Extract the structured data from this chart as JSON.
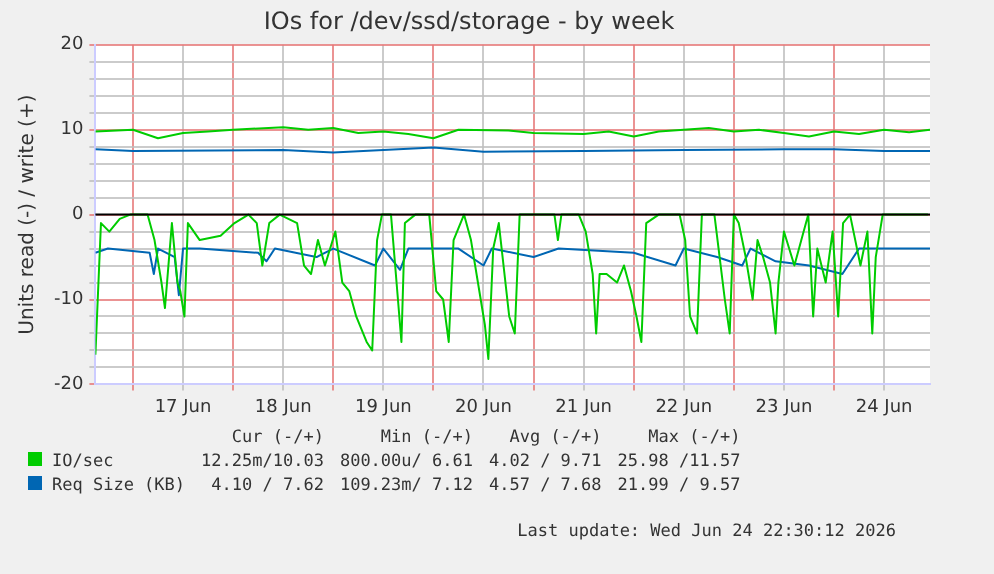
{
  "chart_data": {
    "type": "line",
    "title": "IOs for /dev/ssd/storage - by week",
    "ylabel": "Units read (-) / write (+)",
    "xlim": [
      "2026-06-16T15:00",
      "2026-06-24T23:00"
    ],
    "xticks": [
      {
        "value": "2026-06-17T00:00",
        "label": null
      },
      {
        "value": "2026-06-17T12:00",
        "label": "17 Jun"
      },
      {
        "value": "2026-06-18T00:00",
        "label": null
      },
      {
        "value": "2026-06-18T12:00",
        "label": "18 Jun"
      },
      {
        "value": "2026-06-19T00:00",
        "label": null
      },
      {
        "value": "2026-06-19T12:00",
        "label": "19 Jun"
      },
      {
        "value": "2026-06-20T00:00",
        "label": null
      },
      {
        "value": "2026-06-20T12:00",
        "label": "20 Jun"
      },
      {
        "value": "2026-06-21T00:00",
        "label": null
      },
      {
        "value": "2026-06-21T12:00",
        "label": "21 Jun"
      },
      {
        "value": "2026-06-22T00:00",
        "label": null
      },
      {
        "value": "2026-06-22T12:00",
        "label": "22 Jun"
      },
      {
        "value": "2026-06-23T00:00",
        "label": null
      },
      {
        "value": "2026-06-23T12:00",
        "label": "23 Jun"
      },
      {
        "value": "2026-06-24T00:00",
        "label": null
      },
      {
        "value": "2026-06-24T12:00",
        "label": "24 Jun"
      }
    ],
    "ylim": [
      -20,
      20
    ],
    "yticks": [
      -20,
      {
        "value": -18,
        "label": null
      },
      {
        "value": -16,
        "label": null
      },
      {
        "value": -14,
        "label": null
      },
      {
        "value": -12,
        "label": null
      },
      -10,
      {
        "value": -8,
        "label": null
      },
      {
        "value": -6,
        "label": null
      },
      {
        "value": -4,
        "label": null
      },
      {
        "value": -2,
        "label": null
      },
      0,
      {
        "value": 2,
        "label": null
      },
      {
        "value": 4,
        "label": null
      },
      {
        "value": 6,
        "label": null
      },
      {
        "value": 8,
        "label": null
      },
      10,
      {
        "value": 12,
        "label": null
      },
      {
        "value": 14,
        "label": null
      },
      {
        "value": 16,
        "label": null
      },
      {
        "value": 18,
        "label": null
      },
      20
    ],
    "grid": true,
    "legend": "bottom",
    "marker": "none",
    "line_style": "solid",
    "ref_lines": [
      {
        "axis": "y",
        "value": 0,
        "color": "#000000"
      }
    ],
    "series": [
      {
        "color": "#00cc00",
        "x": [
          "2026-06-16T15:00",
          "2026-06-16T16:20",
          "2026-06-16T18:20",
          "2026-06-16T20:50",
          "2026-06-16T23:20",
          "2026-06-17T03:30",
          "2026-06-17T05:10",
          "2026-06-17T06:50",
          "2026-06-17T07:40",
          "2026-06-17T09:20",
          "2026-06-17T10:40",
          "2026-06-17T11:20",
          "2026-06-17T12:20",
          "2026-06-17T13:10",
          "2026-06-17T16:00",
          "2026-06-17T21:00",
          "2026-06-18T00:20",
          "2026-06-18T03:40",
          "2026-06-18T05:40",
          "2026-06-18T07:00",
          "2026-06-18T08:40",
          "2026-06-18T11:10",
          "2026-06-18T15:20",
          "2026-06-18T17:00",
          "2026-06-18T18:40",
          "2026-06-18T20:20",
          "2026-06-18T22:00",
          "2026-06-19T00:30",
          "2026-06-19T02:10",
          "2026-06-19T03:50",
          "2026-06-19T05:30",
          "2026-06-19T08:00",
          "2026-06-19T09:20",
          "2026-06-19T10:30",
          "2026-06-19T11:40",
          "2026-06-19T13:50",
          "2026-06-19T15:30",
          "2026-06-19T16:20",
          "2026-06-19T17:10",
          "2026-06-19T19:40",
          "2026-06-19T23:00",
          "2026-06-20T00:40",
          "2026-06-20T02:20",
          "2026-06-20T03:40",
          "2026-06-20T04:50",
          "2026-06-20T07:20",
          "2026-06-20T09:00",
          "2026-06-20T10:40",
          "2026-06-20T12:20",
          "2026-06-20T13:10",
          "2026-06-20T14:20",
          "2026-06-20T15:40",
          "2026-06-20T18:10",
          "2026-06-20T19:30",
          "2026-06-20T20:40",
          "2026-06-21T05:00",
          "2026-06-21T05:50",
          "2026-06-21T06:40",
          "2026-06-21T10:50",
          "2026-06-21T12:30",
          "2026-06-21T14:10",
          "2026-06-21T15:00",
          "2026-06-21T15:50",
          "2026-06-21T17:30",
          "2026-06-21T20:00",
          "2026-06-21T21:40",
          "2026-06-21T23:20",
          "2026-06-22T00:40",
          "2026-06-22T01:50",
          "2026-06-22T03:00",
          "2026-06-22T06:00",
          "2026-06-22T11:00",
          "2026-06-22T12:20",
          "2026-06-22T13:30",
          "2026-06-22T15:10",
          "2026-06-22T16:20",
          "2026-06-22T19:20",
          "2026-06-22T21:50",
          "2026-06-22T23:00",
          "2026-06-23T00:00",
          "2026-06-23T01:10",
          "2026-06-23T02:50",
          "2026-06-23T04:30",
          "2026-06-23T05:40",
          "2026-06-23T07:00",
          "2026-06-23T08:40",
          "2026-06-23T10:00",
          "2026-06-23T10:40",
          "2026-06-23T12:00",
          "2026-06-23T14:30",
          "2026-06-23T16:10",
          "2026-06-23T17:50",
          "2026-06-23T19:00",
          "2026-06-23T20:00",
          "2026-06-23T22:00",
          "2026-06-23T23:40",
          "2026-06-24T01:00",
          "2026-06-24T02:10",
          "2026-06-24T03:50",
          "2026-06-24T06:20",
          "2026-06-24T08:00",
          "2026-06-24T09:10",
          "2026-06-24T10:00",
          "2026-06-24T11:40",
          "2026-06-24T22:30"
        ],
        "values": [
          -16.5,
          -1,
          -2,
          -0.5,
          0,
          0,
          -3,
          -8,
          -11,
          -1,
          -8,
          -9,
          -12,
          -1,
          -3,
          -2.5,
          -1,
          0,
          -1,
          -6,
          -1,
          0,
          -1,
          -6,
          -7,
          -3,
          -6,
          -2,
          -8,
          -9,
          -12,
          -15,
          -16,
          -3,
          0,
          0,
          -10,
          -15,
          -1,
          0,
          0,
          -9,
          -10,
          -15,
          -3,
          0,
          -3,
          -8,
          -13,
          -17,
          -4,
          -1,
          -12,
          -14,
          0,
          0,
          -3,
          0,
          0,
          -2,
          -7,
          -14,
          -7,
          -7,
          -8,
          -6,
          -9,
          -12,
          -15,
          -1,
          0,
          0,
          -3,
          -12,
          -14,
          0,
          0,
          -10,
          -14,
          0,
          -1,
          -5,
          -10,
          -3,
          -5,
          -8,
          -14,
          -8,
          -2,
          -6,
          -3,
          0,
          -12,
          -4,
          -8,
          -2,
          -12,
          -1,
          0,
          -6,
          -2,
          -14,
          -5,
          0,
          0
        ]
      },
      {
        "color": "#0066b3",
        "x": [
          "2026-06-16T15:00",
          "2026-06-16T18:00",
          "2026-06-17T04:00",
          "2026-06-17T05:00",
          "2026-06-17T06:00",
          "2026-06-17T10:00",
          "2026-06-17T11:00",
          "2026-06-17T12:00",
          "2026-06-17T16:00",
          "2026-06-18T06:00",
          "2026-06-18T08:00",
          "2026-06-18T10:00",
          "2026-06-18T20:00",
          "2026-06-19T00:00",
          "2026-06-19T10:00",
          "2026-06-19T12:00",
          "2026-06-19T16:00",
          "2026-06-19T18:00",
          "2026-06-20T06:00",
          "2026-06-20T12:00",
          "2026-06-20T14:00",
          "2026-06-21T00:00",
          "2026-06-21T06:00",
          "2026-06-22T00:00",
          "2026-06-22T10:00",
          "2026-06-22T12:00",
          "2026-06-22T20:00",
          "2026-06-23T02:00",
          "2026-06-23T04:00",
          "2026-06-23T10:00",
          "2026-06-23T18:00",
          "2026-06-24T02:00",
          "2026-06-24T06:00",
          "2026-06-24T12:00",
          "2026-06-24T23:00"
        ],
        "values": [
          -4.5,
          -4,
          -4.5,
          -7,
          -4,
          -5,
          -9.5,
          -4,
          -4,
          -4.5,
          -5.5,
          -4,
          -5,
          -4,
          -6,
          -4,
          -6.5,
          -4,
          -4,
          -6,
          -4,
          -5,
          -4,
          -4.5,
          -6,
          -4,
          -5,
          -6,
          -4,
          -5.5,
          -6,
          -7,
          -4,
          -4,
          -4
        ]
      },
      {
        "name": "IO/sec",
        "color": "#00cc00",
        "x": [
          "2026-06-16T15:00",
          "2026-06-17T00:00",
          "2026-06-17T06:00",
          "2026-06-17T12:00",
          "2026-06-17T18:00",
          "2026-06-18T00:00",
          "2026-06-18T12:00",
          "2026-06-18T18:00",
          "2026-06-19T00:00",
          "2026-06-19T06:00",
          "2026-06-19T12:00",
          "2026-06-19T18:00",
          "2026-06-20T00:00",
          "2026-06-20T06:00",
          "2026-06-20T18:00",
          "2026-06-21T00:00",
          "2026-06-21T12:00",
          "2026-06-21T18:00",
          "2026-06-22T00:00",
          "2026-06-22T06:00",
          "2026-06-22T18:00",
          "2026-06-23T00:00",
          "2026-06-23T06:00",
          "2026-06-23T12:00",
          "2026-06-23T18:00",
          "2026-06-24T00:00",
          "2026-06-24T06:00",
          "2026-06-24T12:00",
          "2026-06-24T18:00",
          "2026-06-24T23:00"
        ],
        "values": [
          9.8,
          10,
          9,
          9.6,
          9.8,
          10,
          10.3,
          10,
          10.2,
          9.6,
          9.8,
          9.5,
          9,
          10,
          9.9,
          9.6,
          9.5,
          9.8,
          9.2,
          9.8,
          10.2,
          9.8,
          10,
          9.6,
          9.2,
          9.8,
          9.5,
          10,
          9.7,
          10
        ]
      },
      {
        "name": "Req Size (KB)",
        "color": "#0066b3",
        "x": [
          "2026-06-16T15:00",
          "2026-06-17T00:00",
          "2026-06-18T12:00",
          "2026-06-19T00:00",
          "2026-06-20T00:00",
          "2026-06-20T12:00",
          "2026-06-21T12:00",
          "2026-06-22T12:00",
          "2026-06-23T12:00",
          "2026-06-24T00:00",
          "2026-06-24T12:00",
          "2026-06-24T23:00"
        ],
        "values": [
          7.7,
          7.5,
          7.6,
          7.3,
          7.9,
          7.4,
          7.5,
          7.6,
          7.7,
          7.7,
          7.5,
          7.5
        ]
      }
    ],
    "annotations": [
      "Cur (-/+)",
      "Min (-/+)",
      "Avg (-/+)",
      "Max (-/+)",
      "12.25m/10.03",
      "800.00u/ 6.61",
      "4.02 / 9.71",
      "25.98 /11.57",
      "4.10 / 7.62",
      "109.23m/ 7.12",
      "4.57 / 7.68",
      "21.99 / 9.57",
      "Last update: Wed Jun 24 22:30:12 2026"
    ]
  }
}
